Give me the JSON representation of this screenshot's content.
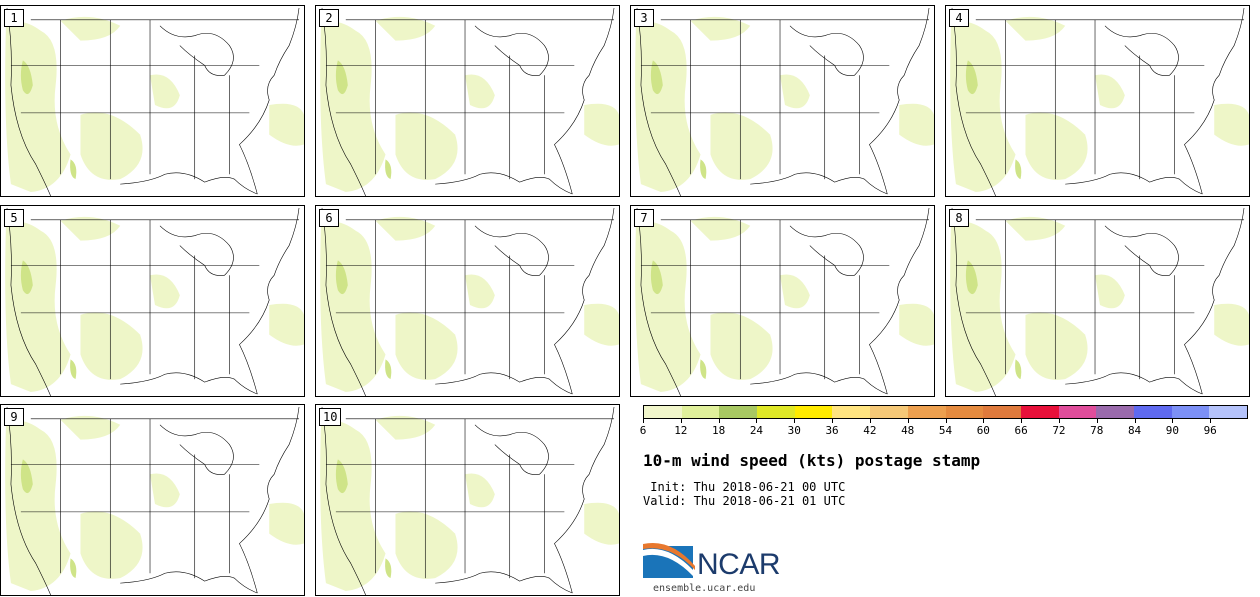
{
  "panels": [
    {
      "label": "1"
    },
    {
      "label": "2"
    },
    {
      "label": "3"
    },
    {
      "label": "4"
    },
    {
      "label": "5"
    },
    {
      "label": "6"
    },
    {
      "label": "7"
    },
    {
      "label": "8"
    },
    {
      "label": "9"
    },
    {
      "label": "10"
    }
  ],
  "colorbar": {
    "ticks": [
      "6",
      "12",
      "18",
      "24",
      "30",
      "36",
      "42",
      "48",
      "54",
      "60",
      "66",
      "72",
      "78",
      "84",
      "90",
      "96"
    ],
    "colors": [
      "#f1f6cb",
      "#e0f09b",
      "#a8c862",
      "#dfe827",
      "#ffeb00",
      "#ffe480",
      "#f5c877",
      "#eda04f",
      "#e58b3f",
      "#df7a3c",
      "#e8103a",
      "#e04d9b",
      "#9a6aac",
      "#5f6af0",
      "#7c90f6",
      "#b5c3fb"
    ]
  },
  "title": "10-m wind speed (kts) postage stamp",
  "init": " Init: Thu 2018-06-21 00 UTC",
  "valid": "Valid: Thu 2018-06-21 01 UTC",
  "logo": {
    "text": "NCAR",
    "website": "ensemble.ucar.edu"
  }
}
